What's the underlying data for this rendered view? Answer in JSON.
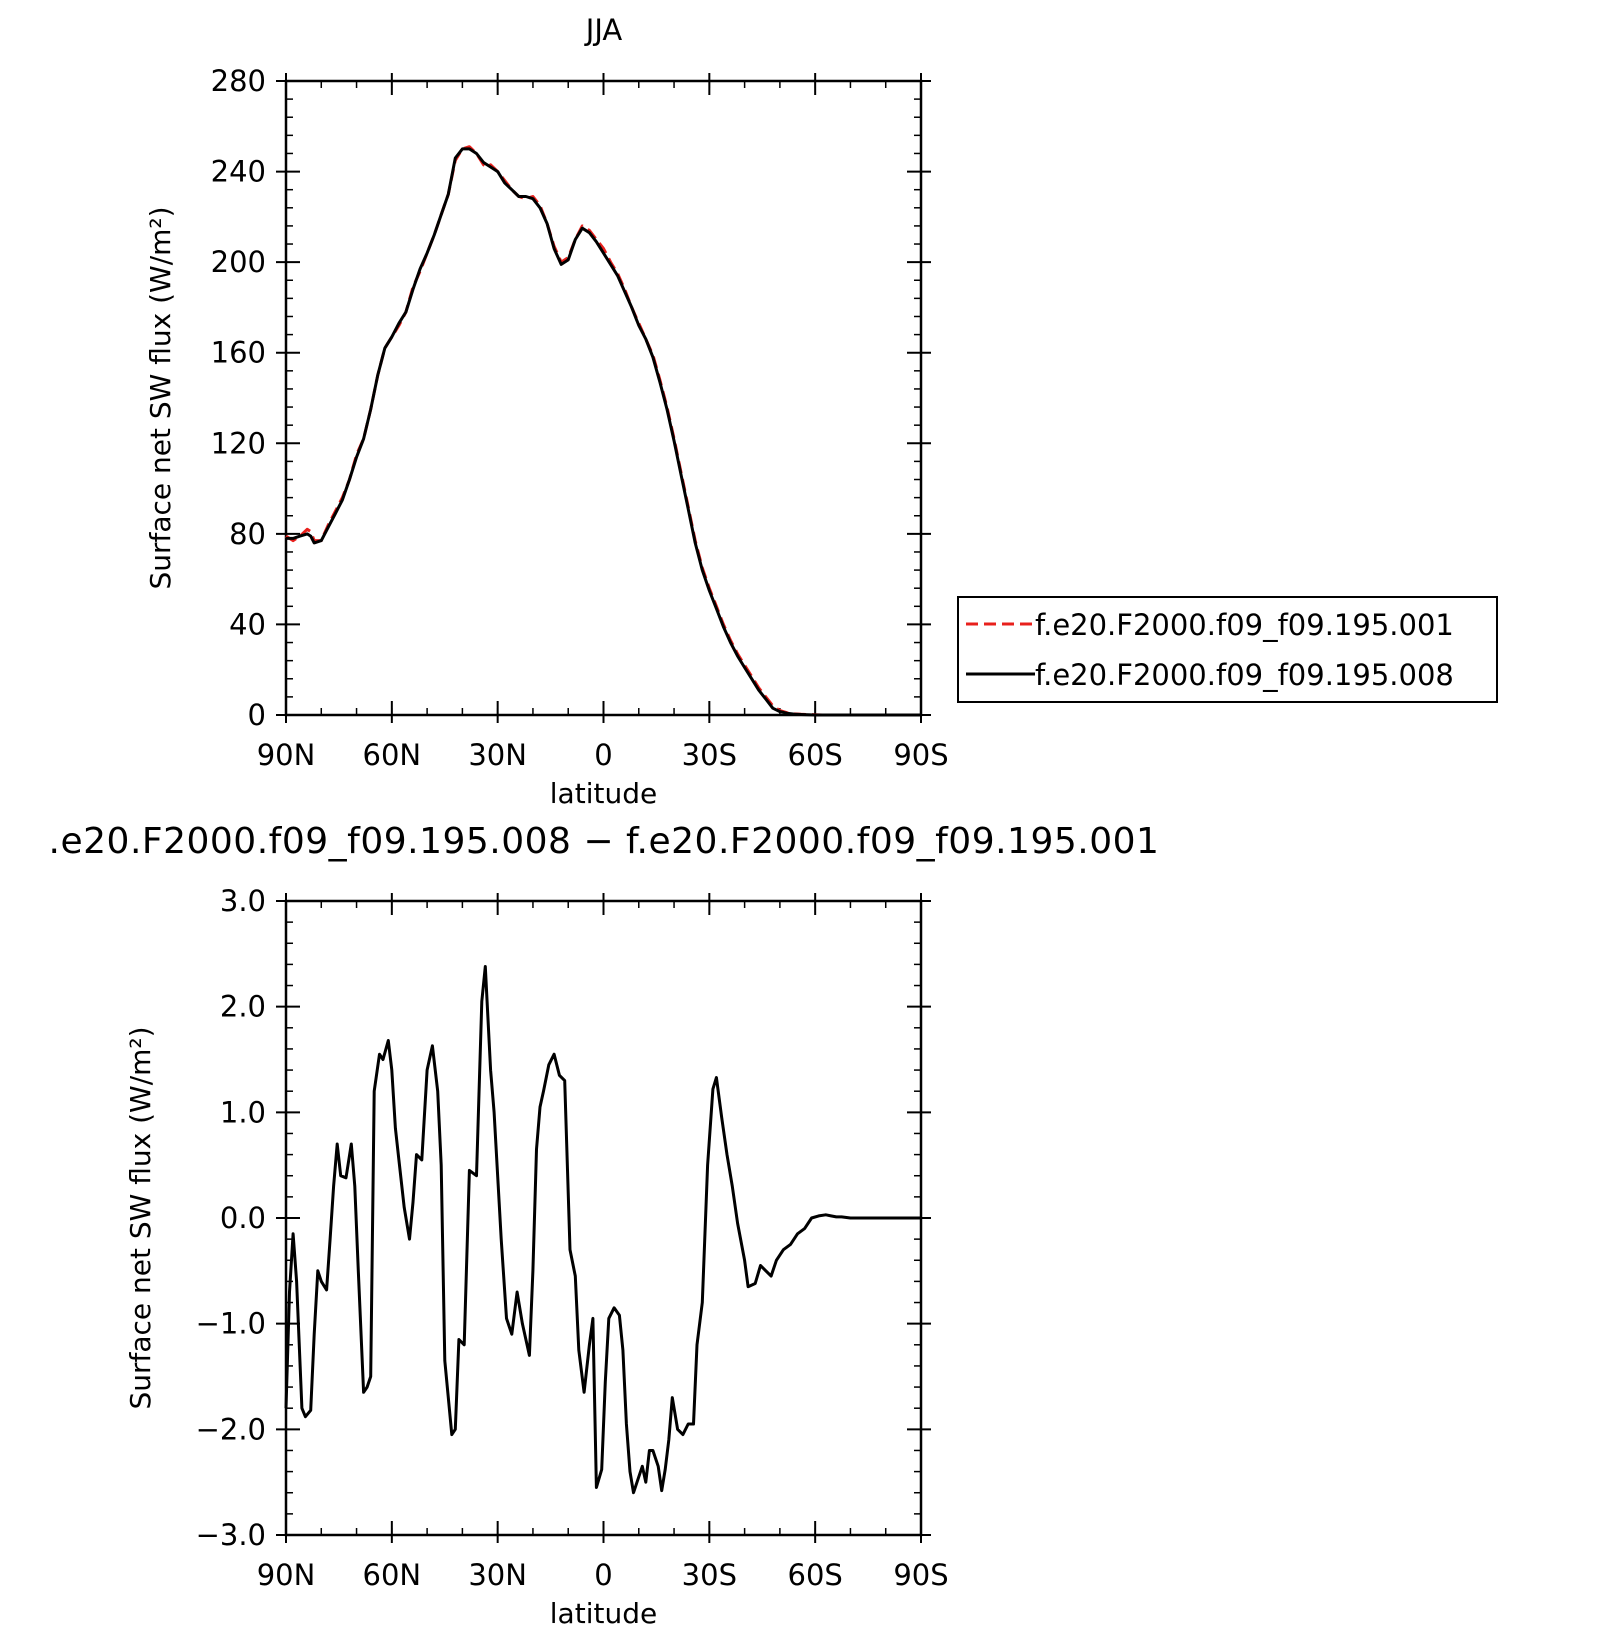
{
  "chart_data": [
    {
      "type": "line",
      "title": "JJA",
      "xlabel": "latitude",
      "ylabel": "Surface net SW flux (W/m²)",
      "xlim": [
        90,
        -90
      ],
      "ylim": [
        0,
        280
      ],
      "x_ticks": [
        90,
        60,
        30,
        0,
        -30,
        -60,
        -90
      ],
      "x_tick_labels": [
        "90N",
        "60N",
        "30N",
        "0",
        "30S",
        "60S",
        "90S"
      ],
      "y_ticks": [
        0,
        40,
        80,
        120,
        160,
        200,
        240,
        280
      ],
      "y_tick_labels": [
        "0",
        "40",
        "80",
        "120",
        "160",
        "200",
        "240",
        "280"
      ],
      "legend": {
        "position": "right",
        "entries": [
          "f.e20.F2000.f09_f09.195.001",
          "f.e20.F2000.f09_f09.195.008"
        ]
      },
      "series": [
        {
          "name": "f.e20.F2000.f09_f09.195.001",
          "color": "#e8201c",
          "dash": "dashed",
          "x": [
            90,
            88,
            86,
            84,
            83,
            82,
            80,
            78,
            76,
            74,
            72,
            70,
            68,
            66,
            64,
            62,
            60,
            58,
            56,
            54,
            52,
            50,
            48,
            46,
            44,
            42,
            40,
            38,
            36,
            34,
            33,
            32,
            30,
            28,
            26,
            24,
            22,
            20,
            18,
            16,
            14,
            12,
            10,
            8,
            6,
            4,
            2,
            0,
            -2,
            -4,
            -6,
            -8,
            -10,
            -12,
            -14,
            -16,
            -18,
            -20,
            -22,
            -24,
            -26,
            -28,
            -30,
            -32,
            -34,
            -36,
            -38,
            -40,
            -42,
            -44,
            -46,
            -48,
            -50,
            -52,
            -54,
            -56,
            -58,
            -60,
            -62,
            -64,
            -66,
            -68,
            -70,
            -72,
            -75,
            -80,
            -90
          ],
          "y": [
            79,
            77,
            79,
            82,
            81,
            77,
            77,
            84,
            90,
            96,
            104,
            115,
            122,
            135,
            150,
            162,
            167,
            172,
            178,
            189,
            196,
            204,
            212,
            221,
            230,
            245,
            250,
            251,
            248,
            243,
            242,
            243,
            240,
            236,
            232,
            229,
            228,
            229,
            225,
            217,
            207,
            200,
            202,
            210,
            216,
            214,
            210,
            206,
            200,
            195,
            188,
            180,
            173,
            166,
            159,
            148,
            136,
            122,
            107,
            92,
            77,
            65,
            56,
            48,
            40,
            33,
            27,
            22,
            17,
            12,
            8,
            4,
            2,
            1,
            0.5,
            0.3,
            0.2,
            0.1,
            0,
            0,
            0,
            0,
            0,
            0,
            0,
            0,
            0
          ]
        },
        {
          "name": "f.e20.F2000.f09_f09.195.008",
          "color": "#000000",
          "dash": "solid",
          "x": [
            90,
            88,
            86,
            84,
            83,
            82,
            80,
            78,
            76,
            74,
            72,
            70,
            68,
            66,
            64,
            62,
            60,
            58,
            56,
            54,
            52,
            50,
            48,
            46,
            44,
            42,
            40,
            38,
            36,
            34,
            33,
            32,
            30,
            28,
            26,
            24,
            22,
            20,
            18,
            16,
            14,
            12,
            10,
            8,
            6,
            4,
            2,
            0,
            -2,
            -4,
            -6,
            -8,
            -10,
            -12,
            -14,
            -16,
            -18,
            -20,
            -22,
            -24,
            -26,
            -28,
            -30,
            -32,
            -34,
            -36,
            -38,
            -40,
            -42,
            -44,
            -46,
            -48,
            -50,
            -52,
            -54,
            -56,
            -58,
            -60,
            -62,
            -64,
            -66,
            -68,
            -70,
            -72,
            -75,
            -80,
            -90
          ],
          "y": [
            78,
            78,
            79,
            80,
            79,
            76,
            77,
            83,
            89,
            95,
            104,
            114,
            122,
            135,
            150,
            162,
            167,
            173,
            178,
            188,
            197,
            204,
            212,
            221,
            230,
            246,
            250,
            250,
            248,
            244,
            243,
            242,
            240,
            235,
            232,
            229,
            229,
            228,
            224,
            217,
            206,
            199,
            201,
            210,
            215,
            213,
            209,
            204,
            199,
            194,
            187,
            180,
            172,
            166,
            158,
            147,
            135,
            121,
            106,
            91,
            76,
            64,
            55,
            47,
            39,
            32,
            26,
            21,
            16,
            11,
            7,
            3,
            1.5,
            0.8,
            0.4,
            0.2,
            0.1,
            0,
            0,
            0,
            0,
            0,
            0,
            0,
            0,
            0,
            0
          ]
        }
      ]
    },
    {
      "type": "line",
      "title": ".e20.F2000.f09_f09.195.008 − f.e20.F2000.f09_f09.195.001",
      "xlabel": "latitude",
      "ylabel": "Surface net SW flux (W/m²)",
      "xlim": [
        90,
        -90
      ],
      "ylim": [
        -3.0,
        3.0
      ],
      "x_ticks": [
        90,
        60,
        30,
        0,
        -30,
        -60,
        -90
      ],
      "x_tick_labels": [
        "90N",
        "60N",
        "30N",
        "0",
        "30S",
        "60S",
        "90S"
      ],
      "y_ticks": [
        -3,
        -2,
        -1,
        0,
        1,
        2,
        3
      ],
      "y_tick_labels": [
        "−3.0",
        "−2.0",
        "−1.0",
        "0.0",
        "1.0",
        "2.0",
        "3.0"
      ],
      "series": [
        {
          "color": "#000000",
          "x": [
            90,
            89,
            88,
            87,
            85.5,
            84.5,
            83,
            82,
            81,
            80,
            78.5,
            77.5,
            76.5,
            75.5,
            74.5,
            73,
            71.5,
            70.5,
            69.5,
            68,
            67,
            66,
            65,
            63.5,
            62.5,
            61,
            60,
            59,
            58,
            56.5,
            55,
            54,
            53,
            51.5,
            50,
            48.5,
            47,
            46,
            45,
            44,
            43,
            42,
            41,
            39.5,
            38,
            36,
            34.5,
            33.5,
            32,
            31,
            29,
            27.5,
            26,
            24.5,
            23,
            21,
            20,
            19,
            18,
            17,
            15.5,
            14,
            12.5,
            11,
            9.5,
            8,
            7,
            5.5,
            4,
            3,
            2,
            0.5,
            -0.5,
            -1.5,
            -3,
            -4.5,
            -5.5,
            -6.5,
            -7.5,
            -8.5,
            -9.5,
            -11,
            -12,
            -13,
            -14,
            -15.5,
            -16.5,
            -17.5,
            -18.5,
            -19.5,
            -21,
            -22.5,
            -24,
            -25.5,
            -26.5,
            -28,
            -29.5,
            -31,
            -32,
            -33.5,
            -35,
            -36.5,
            -38,
            -40,
            -41,
            -43,
            -44.5,
            -46,
            -47.5,
            -49,
            -51,
            -53,
            -55,
            -57,
            -59,
            -61,
            -63,
            -64.5,
            -66,
            -67.5,
            -70,
            -75,
            -80,
            -90
          ],
          "y": [
            -1.8,
            -0.7,
            -0.15,
            -0.6,
            -1.8,
            -1.88,
            -1.82,
            -1.1,
            -0.5,
            -0.6,
            -0.68,
            -0.2,
            0.3,
            0.7,
            0.4,
            0.38,
            0.7,
            0.3,
            -0.5,
            -1.65,
            -1.6,
            -1.5,
            1.2,
            1.55,
            1.5,
            1.68,
            1.4,
            0.85,
            0.55,
            0.1,
            -0.2,
            0.15,
            0.6,
            0.55,
            1.4,
            1.63,
            1.2,
            0.5,
            -1.35,
            -1.7,
            -2.05,
            -2.0,
            -1.15,
            -1.2,
            0.45,
            0.4,
            2.05,
            2.38,
            1.4,
            1.0,
            -0.2,
            -0.95,
            -1.1,
            -0.7,
            -1.0,
            -1.3,
            -0.5,
            0.65,
            1.05,
            1.2,
            1.45,
            1.55,
            1.35,
            1.3,
            -0.3,
            -0.55,
            -1.25,
            -1.65,
            -1.2,
            -0.95,
            -2.55,
            -2.38,
            -1.55,
            -0.95,
            -0.85,
            -0.92,
            -1.25,
            -1.95,
            -2.4,
            -2.6,
            -2.5,
            -2.35,
            -2.5,
            -2.2,
            -2.2,
            -2.35,
            -2.58,
            -2.38,
            -2.1,
            -1.7,
            -2.0,
            -2.05,
            -1.95,
            -1.95,
            -1.2,
            -0.8,
            0.5,
            1.22,
            1.33,
            0.95,
            0.6,
            0.3,
            -0.05,
            -0.4,
            -0.65,
            -0.62,
            -0.45,
            -0.5,
            -0.55,
            -0.4,
            -0.3,
            -0.25,
            -0.15,
            -0.1,
            0.0,
            0.02,
            0.03,
            0.02,
            0.01,
            0.01,
            0.0,
            0.0,
            0.0,
            0.0
          ]
        }
      ]
    }
  ]
}
